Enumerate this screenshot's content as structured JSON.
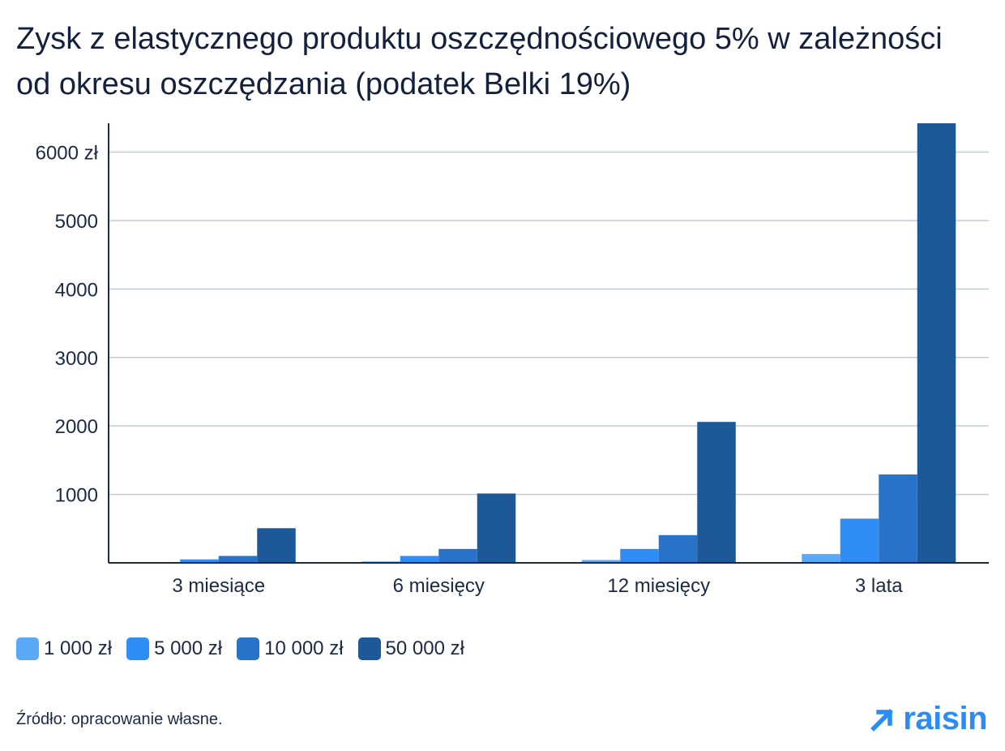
{
  "title": "Zysk z elastycznego produktu oszczędnościowego 5% w zależności od okresu oszczędzania (podatek Belki 19%)",
  "source": "Źródło: opracowanie własne.",
  "logo_text": "raisin",
  "chart_data": {
    "type": "bar",
    "title": "Zysk z elastycznego produktu oszczędnościowego 5% w zależności od okresu oszczędzania (podatek Belki 19%)",
    "categories": [
      "3 miesiące",
      "6 miesięcy",
      "12 miesięcy",
      "3 lata"
    ],
    "series": [
      {
        "name": "1 000 zł",
        "color": "#5aa9f7",
        "values": [
          10,
          20,
          41,
          129
        ]
      },
      {
        "name": "5 000 zł",
        "color": "#2e8ef5",
        "values": [
          51,
          101,
          203,
          646
        ]
      },
      {
        "name": "10 000 zł",
        "color": "#2872c9",
        "values": [
          101,
          203,
          405,
          1291
        ]
      },
      {
        "name": "50 000 zł",
        "color": "#1d5998",
        "values": [
          506,
          1013,
          2059,
          6421
        ]
      }
    ],
    "y_ticks": [
      {
        "value": 1000,
        "label": "1000"
      },
      {
        "value": 2000,
        "label": "2000"
      },
      {
        "value": 3000,
        "label": "3000"
      },
      {
        "value": 4000,
        "label": "4000"
      },
      {
        "value": 5000,
        "label": "5000"
      },
      {
        "value": 6000,
        "label": "6000 zł"
      }
    ],
    "ylim": [
      0,
      6421
    ],
    "xlabel": "",
    "ylabel": "",
    "grid": true,
    "legend_position": "bottom-left"
  }
}
